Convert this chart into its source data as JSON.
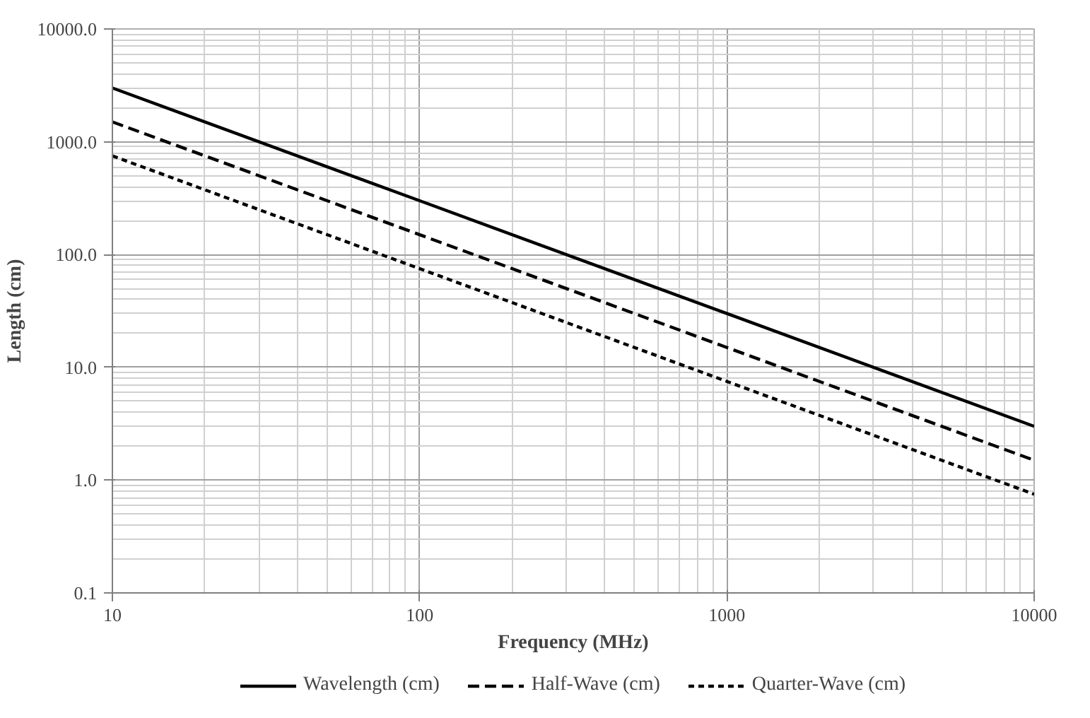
{
  "chart_data": {
    "type": "line",
    "xlabel": "Frequency (MHz)",
    "ylabel": "Length (cm)",
    "log": "xy",
    "grid": true,
    "legend": "bottom",
    "x": [
      10,
      100,
      1000,
      10000
    ],
    "xlim": [
      10,
      10000
    ],
    "xticks": [
      10,
      100,
      1000,
      10000
    ],
    "ylim": [
      0.1,
      10000
    ],
    "yticks": [
      {
        "value": 0.1,
        "label": "0.1"
      },
      {
        "value": 1,
        "label": "1.0"
      },
      {
        "value": 10,
        "label": "10.0"
      },
      {
        "value": 100,
        "label": "100.0"
      },
      {
        "value": 1000,
        "label": "1000.0"
      },
      {
        "value": 10000,
        "label": "10000.0"
      }
    ],
    "series": [
      {
        "name": "Wavelength (cm)",
        "color": "#000000",
        "line_style": "solid",
        "values": [
          3000,
          300,
          30,
          3
        ]
      },
      {
        "name": "Half-Wave (cm)",
        "color": "#000000",
        "line_style": "dashed",
        "values": [
          1500,
          150,
          15,
          1.5
        ]
      },
      {
        "name": "Quarter-Wave (cm)",
        "color": "#000000",
        "line_style": "dotted",
        "values": [
          750,
          75,
          7.5,
          0.75
        ]
      }
    ]
  }
}
